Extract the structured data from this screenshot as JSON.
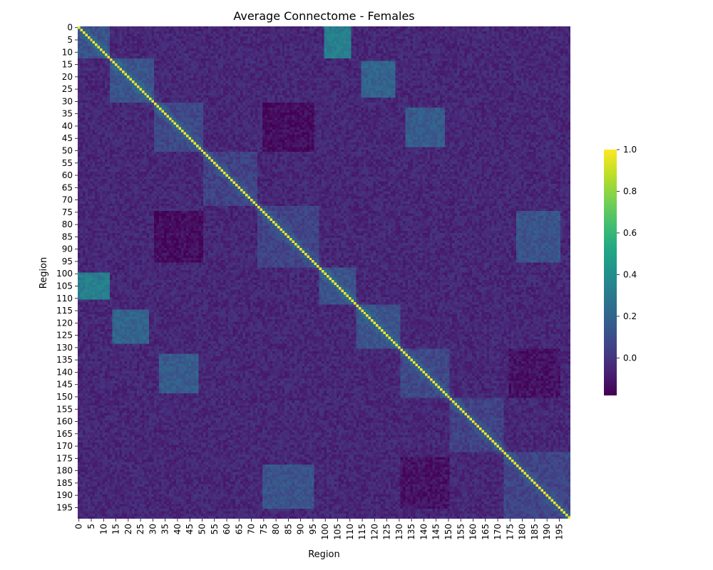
{
  "chart_data": {
    "type": "heatmap",
    "title": "Average Connectome - Females",
    "xlabel": "Region",
    "ylabel": "Region",
    "matrix_size": 200,
    "regions": [
      0,
      199
    ],
    "x_ticks": [
      0,
      5,
      10,
      15,
      20,
      25,
      30,
      35,
      40,
      45,
      50,
      55,
      60,
      65,
      70,
      75,
      80,
      85,
      90,
      95,
      100,
      105,
      110,
      115,
      120,
      125,
      130,
      135,
      140,
      145,
      150,
      155,
      160,
      165,
      170,
      175,
      180,
      185,
      190,
      195
    ],
    "y_ticks": [
      0,
      5,
      10,
      15,
      20,
      25,
      30,
      35,
      40,
      45,
      50,
      55,
      60,
      65,
      70,
      75,
      80,
      85,
      90,
      95,
      100,
      105,
      110,
      115,
      120,
      125,
      130,
      135,
      140,
      145,
      150,
      155,
      160,
      165,
      170,
      175,
      180,
      185,
      190,
      195
    ],
    "colorbar": {
      "colormap": "viridis",
      "vmin": -0.18,
      "vmax": 1.0,
      "ticks": [
        1.0,
        0.8,
        0.6,
        0.4,
        0.2,
        -0.0
      ],
      "tick_labels": [
        "1.0",
        "0.8",
        "0.6",
        "0.4",
        "0.2",
        "0.0"
      ]
    },
    "diagonal_value": 1.0,
    "background_value": -0.05,
    "modules": [
      {
        "regions": [
          0,
          12
        ],
        "within": 0.12
      },
      {
        "regions": [
          13,
          30
        ],
        "within": 0.12
      },
      {
        "regions": [
          31,
          50
        ],
        "within": 0.08
      },
      {
        "regions": [
          51,
          72
        ],
        "within": 0.05
      },
      {
        "regions": [
          73,
          97
        ],
        "within": 0.06
      },
      {
        "regions": [
          98,
          112
        ],
        "within": 0.12
      },
      {
        "regions": [
          113,
          130
        ],
        "within": 0.12
      },
      {
        "regions": [
          131,
          150
        ],
        "within": 0.08
      },
      {
        "regions": [
          151,
          172
        ],
        "within": 0.05
      },
      {
        "regions": [
          173,
          199
        ],
        "within": 0.06
      }
    ],
    "hotspots": [
      {
        "rows": [
          100,
          110
        ],
        "cols": [
          0,
          12
        ],
        "value": 0.32
      },
      {
        "rows": [
          0,
          12
        ],
        "cols": [
          100,
          110
        ],
        "value": 0.32
      },
      {
        "rows": [
          14,
          28
        ],
        "cols": [
          115,
          128
        ],
        "value": 0.2
      },
      {
        "rows": [
          115,
          128
        ],
        "cols": [
          14,
          28
        ],
        "value": 0.2
      },
      {
        "rows": [
          33,
          48
        ],
        "cols": [
          133,
          148
        ],
        "value": 0.16
      },
      {
        "rows": [
          133,
          148
        ],
        "cols": [
          33,
          48
        ],
        "value": 0.16
      },
      {
        "rows": [
          75,
          95
        ],
        "cols": [
          178,
          195
        ],
        "value": 0.12
      },
      {
        "rows": [
          178,
          195
        ],
        "cols": [
          75,
          95
        ],
        "value": 0.12
      },
      {
        "rows": [
          75,
          95
        ],
        "cols": [
          31,
          50
        ],
        "value": -0.14
      },
      {
        "rows": [
          31,
          50
        ],
        "cols": [
          75,
          95
        ],
        "value": -0.14
      },
      {
        "rows": [
          175,
          195
        ],
        "cols": [
          131,
          150
        ],
        "value": -0.12
      },
      {
        "rows": [
          131,
          150
        ],
        "cols": [
          175,
          195
        ],
        "value": -0.12
      }
    ]
  }
}
